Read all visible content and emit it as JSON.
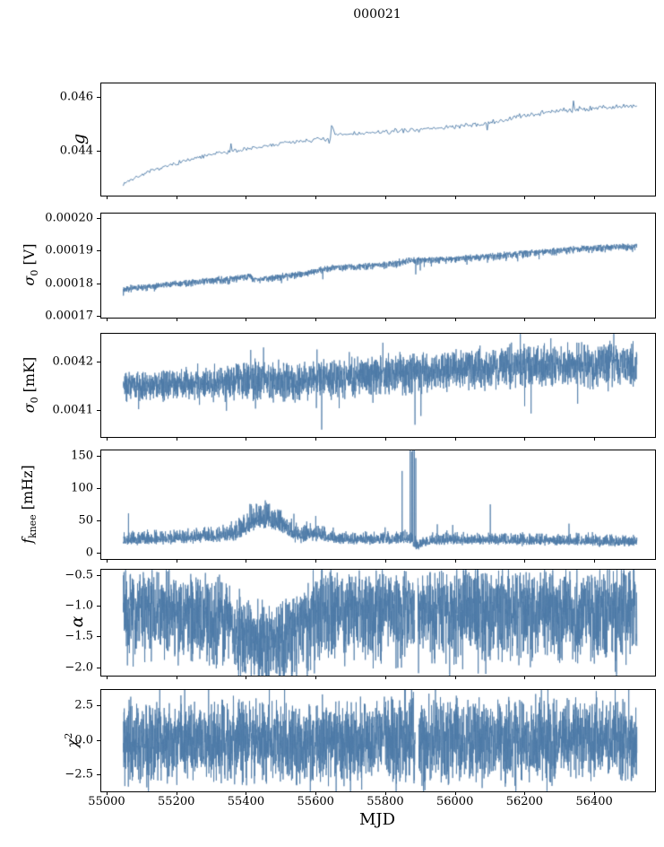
{
  "chart_data": {
    "type": "line",
    "title": "000021",
    "xlabel": "MJD",
    "line_color": "#4d7aa7",
    "axis_color": "#000000",
    "grid": false,
    "legend": "none",
    "xlim": [
      54982,
      56572
    ],
    "data_range": [
      55045,
      56520
    ],
    "xticks": [
      {
        "v": 55000,
        "label": "55000"
      },
      {
        "v": 55200,
        "label": "55200"
      },
      {
        "v": 55400,
        "label": "55400"
      },
      {
        "v": 55600,
        "label": "55600"
      },
      {
        "v": 55800,
        "label": "55800"
      },
      {
        "v": 56000,
        "label": "56000"
      },
      {
        "v": 56200,
        "label": "56200"
      },
      {
        "v": 56400,
        "label": "56400"
      }
    ],
    "panels": [
      {
        "name": "g",
        "ylabel_segments": [
          {
            "t": "g",
            "s": "i"
          }
        ],
        "ylim": [
          0.04235,
          0.04655
        ],
        "yticks": [
          {
            "v": 0.046,
            "label": "0.046"
          },
          {
            "v": 0.044,
            "label": "0.044"
          }
        ],
        "n": 430,
        "seed": 7,
        "line_width": 0.9,
        "asym": [
          1.0,
          1.0
        ],
        "clamp_min": null,
        "envelope": [
          [
            55045,
            0.0428
          ],
          [
            55080,
            0.04302
          ],
          [
            55120,
            0.04324
          ],
          [
            55170,
            0.04345
          ],
          [
            55220,
            0.04364
          ],
          [
            55270,
            0.0438
          ],
          [
            55320,
            0.04394
          ],
          [
            55370,
            0.04404
          ],
          [
            55420,
            0.04412
          ],
          [
            55470,
            0.04424
          ],
          [
            55520,
            0.04434
          ],
          [
            55570,
            0.04442
          ],
          [
            55610,
            0.04447
          ],
          [
            55632,
            0.04448
          ],
          [
            55638,
            0.04418
          ],
          [
            55644,
            0.04506
          ],
          [
            55652,
            0.04462
          ],
          [
            55680,
            0.04464
          ],
          [
            55720,
            0.04467
          ],
          [
            55760,
            0.0447
          ],
          [
            55820,
            0.04475
          ],
          [
            55880,
            0.04482
          ],
          [
            55940,
            0.04487
          ],
          [
            56000,
            0.04494
          ],
          [
            56060,
            0.045
          ],
          [
            56120,
            0.04512
          ],
          [
            56180,
            0.0453
          ],
          [
            56240,
            0.04545
          ],
          [
            56300,
            0.04553
          ],
          [
            56360,
            0.0456
          ],
          [
            56420,
            0.04565
          ],
          [
            56470,
            0.04568
          ],
          [
            56520,
            0.04565
          ]
        ],
        "amp": [
          [
            55045,
            6e-05
          ],
          [
            55600,
            7e-05
          ],
          [
            55900,
            6e-05
          ],
          [
            56100,
            8e-05
          ],
          [
            56250,
            9e-05
          ],
          [
            56520,
            8e-05
          ]
        ],
        "spikes": [
          [
            56338,
            0.0459
          ],
          [
            56090,
            0.0448
          ],
          [
            55355,
            0.0443
          ]
        ],
        "gaps": []
      },
      {
        "name": "sigma0_V",
        "ylabel_segments": [
          {
            "t": "σ",
            "s": "i"
          },
          {
            "t": "0",
            "s": "sub"
          },
          {
            "t": " [V]",
            "s": "r"
          }
        ],
        "ylim": [
          0.0001697,
          0.0002017
        ],
        "yticks": [
          {
            "v": 0.0002,
            "label": "0.00020"
          },
          {
            "v": 0.00019,
            "label": "0.00019"
          },
          {
            "v": 0.00018,
            "label": "0.00018"
          },
          {
            "v": 0.00017,
            "label": "0.00017"
          }
        ],
        "n": 2600,
        "seed": 13,
        "line_width": 0.8,
        "asym": [
          0.7,
          1.3
        ],
        "clamp_min": null,
        "envelope": [
          [
            55045,
            0.0001786
          ],
          [
            55120,
            0.0001794
          ],
          [
            55200,
            0.0001803
          ],
          [
            55280,
            0.0001811
          ],
          [
            55350,
            0.0001817
          ],
          [
            55395,
            0.0001823
          ],
          [
            55412,
            0.0001826
          ],
          [
            55418,
            0.0001814
          ],
          [
            55480,
            0.0001822
          ],
          [
            55540,
            0.000183
          ],
          [
            55585,
            0.0001838
          ],
          [
            55620,
            0.0001847
          ],
          [
            55645,
            0.0001852
          ],
          [
            55690,
            0.0001853
          ],
          [
            55740,
            0.0001857
          ],
          [
            55790,
            0.0001861
          ],
          [
            55835,
            0.0001866
          ],
          [
            55860,
            0.0001873
          ],
          [
            55910,
            0.0001875
          ],
          [
            55960,
            0.0001877
          ],
          [
            56010,
            0.000188
          ],
          [
            56060,
            0.0001884
          ],
          [
            56110,
            0.0001888
          ],
          [
            56160,
            0.0001892
          ],
          [
            56210,
            0.0001897
          ],
          [
            56260,
            0.0001901
          ],
          [
            56310,
            0.0001906
          ],
          [
            56360,
            0.000191
          ],
          [
            56410,
            0.0001913
          ],
          [
            56460,
            0.0001916
          ],
          [
            56520,
            0.0001918
          ]
        ],
        "amp": [
          [
            55045,
            8e-07
          ],
          [
            56520,
            9e-07
          ]
        ],
        "spikes": [
          [
            55618,
            0.0001815
          ],
          [
            55885,
            0.000183
          ],
          [
            55898,
            0.0001842
          ],
          [
            56091,
            0.0001866
          ],
          [
            56178,
            0.000187
          ],
          [
            55345,
            0.00018
          ]
        ],
        "gaps": []
      },
      {
        "name": "sigma0_mK",
        "ylabel_segments": [
          {
            "t": "σ",
            "s": "i"
          },
          {
            "t": "0",
            "s": "sub"
          },
          {
            "t": " [mK]",
            "s": "r"
          }
        ],
        "ylim": [
          0.004047,
          0.004258
        ],
        "yticks": [
          {
            "v": 0.0042,
            "label": "0.0042"
          },
          {
            "v": 0.0041,
            "label": "0.0041"
          }
        ],
        "n": 3200,
        "seed": 21,
        "line_width": 0.8,
        "asym": [
          1.0,
          1.15
        ],
        "clamp_min": null,
        "envelope": [
          [
            55045,
            0.004153
          ],
          [
            55200,
            0.004155
          ],
          [
            55300,
            0.004158
          ],
          [
            55420,
            0.004166
          ],
          [
            55480,
            0.00416
          ],
          [
            55550,
            0.004163
          ],
          [
            55620,
            0.00417
          ],
          [
            55700,
            0.004174
          ],
          [
            55800,
            0.004176
          ],
          [
            55900,
            0.00418
          ],
          [
            56000,
            0.004185
          ],
          [
            56100,
            0.004188
          ],
          [
            56200,
            0.004193
          ],
          [
            56300,
            0.004195
          ],
          [
            56400,
            0.004197
          ],
          [
            56520,
            0.004198
          ]
        ],
        "amp": [
          [
            55045,
            2.2e-05
          ],
          [
            55300,
            2.2e-05
          ],
          [
            55420,
            3e-05
          ],
          [
            55600,
            2.8e-05
          ],
          [
            55800,
            3e-05
          ],
          [
            56000,
            3e-05
          ],
          [
            56200,
            3.3e-05
          ],
          [
            56520,
            3.2e-05
          ]
        ],
        "spikes": [
          [
            55411,
            0.004225
          ],
          [
            55425,
            0.004105
          ],
          [
            55448,
            0.00423
          ],
          [
            55615,
            0.004062
          ],
          [
            55883,
            0.004072
          ],
          [
            55900,
            0.00409
          ],
          [
            56160,
            0.00424
          ],
          [
            56216,
            0.004095
          ],
          [
            56350,
            0.004115
          ]
        ],
        "gaps": []
      },
      {
        "name": "f_knee_mHz",
        "ylabel_segments": [
          {
            "t": "f",
            "s": "i"
          },
          {
            "t": "knee",
            "s": "sub"
          },
          {
            "t": " [mHz]",
            "s": "r"
          }
        ],
        "ylim": [
          -9,
          160
        ],
        "yticks": [
          {
            "v": 150,
            "label": "150"
          },
          {
            "v": 100,
            "label": "100"
          },
          {
            "v": 50,
            "label": "50"
          },
          {
            "v": 0,
            "label": "0"
          }
        ],
        "n": 3200,
        "seed": 29,
        "line_width": 0.8,
        "asym": [
          1.35,
          0.65
        ],
        "clamp_min": 2,
        "envelope": [
          [
            55045,
            20
          ],
          [
            55150,
            21
          ],
          [
            55250,
            24
          ],
          [
            55330,
            26
          ],
          [
            55380,
            32
          ],
          [
            55410,
            45
          ],
          [
            55435,
            54
          ],
          [
            55465,
            52
          ],
          [
            55500,
            42
          ],
          [
            55530,
            32
          ],
          [
            55560,
            26
          ],
          [
            55585,
            30
          ],
          [
            55610,
            26
          ],
          [
            55650,
            22
          ],
          [
            55700,
            20
          ],
          [
            55760,
            20
          ],
          [
            55820,
            21
          ],
          [
            55870,
            22
          ],
          [
            55888,
            10
          ],
          [
            55902,
            14
          ],
          [
            55925,
            18
          ],
          [
            56000,
            20
          ],
          [
            56080,
            20
          ],
          [
            56150,
            19
          ],
          [
            56250,
            19
          ],
          [
            56350,
            18
          ],
          [
            56450,
            17
          ],
          [
            56520,
            17
          ]
        ],
        "amp": [
          [
            55045,
            8
          ],
          [
            55330,
            9
          ],
          [
            55410,
            16
          ],
          [
            55470,
            16
          ],
          [
            55530,
            12
          ],
          [
            55600,
            11
          ],
          [
            55660,
            8
          ],
          [
            55750,
            7
          ],
          [
            55880,
            8
          ],
          [
            55910,
            5
          ],
          [
            55950,
            7
          ],
          [
            56520,
            7
          ]
        ],
        "spikes": [
          [
            55060,
            62
          ],
          [
            55846,
            128
          ],
          [
            55869,
            165
          ],
          [
            55873,
            158
          ],
          [
            55877,
            167
          ],
          [
            55881,
            160
          ],
          [
            55885,
            148
          ],
          [
            55598,
            58
          ],
          [
            55648,
            40
          ],
          [
            55947,
            45
          ],
          [
            55991,
            44
          ],
          [
            56099,
            76
          ],
          [
            56325,
            46
          ]
        ],
        "gaps": []
      },
      {
        "name": "alpha",
        "ylabel_segments": [
          {
            "t": "α",
            "s": "i"
          }
        ],
        "ylim": [
          -2.12,
          -0.4
        ],
        "yticks": [
          {
            "v": -0.5,
            "label": "−0.5"
          },
          {
            "v": -1.0,
            "label": "−1.0"
          },
          {
            "v": -1.5,
            "label": "−1.5"
          },
          {
            "v": -2.0,
            "label": "−2.0"
          }
        ],
        "n": 3400,
        "seed": 37,
        "line_width": 0.8,
        "asym": [
          0.78,
          1.08
        ],
        "clamp_min": null,
        "envelope": [
          [
            55045,
            -1.03
          ],
          [
            55150,
            -1.04
          ],
          [
            55250,
            -1.06
          ],
          [
            55305,
            -1.12
          ],
          [
            55355,
            -1.22
          ],
          [
            55395,
            -1.42
          ],
          [
            55425,
            -1.52
          ],
          [
            55465,
            -1.55
          ],
          [
            55505,
            -1.5
          ],
          [
            55540,
            -1.38
          ],
          [
            55565,
            -1.22
          ],
          [
            55590,
            -1.1
          ],
          [
            55620,
            -1.04
          ],
          [
            55700,
            -1.02
          ],
          [
            55800,
            -1.04
          ],
          [
            55900,
            -1.03
          ],
          [
            56000,
            -1.04
          ],
          [
            56100,
            -1.03
          ],
          [
            56200,
            -1.05
          ],
          [
            56300,
            -1.03
          ],
          [
            56400,
            -1.04
          ],
          [
            56520,
            -1.03
          ]
        ],
        "amp": [
          [
            55045,
            0.6
          ],
          [
            55300,
            0.6
          ],
          [
            55420,
            0.58
          ],
          [
            55600,
            0.62
          ],
          [
            56520,
            0.6
          ]
        ],
        "spikes": [
          [
            55240,
            -1.88
          ],
          [
            55468,
            -2.02
          ],
          [
            55490,
            -1.98
          ],
          [
            55878,
            -1.6
          ],
          [
            55893,
            -2.08
          ],
          [
            56350,
            -1.92
          ]
        ],
        "gaps": [
          [
            55882,
            55891
          ]
        ]
      },
      {
        "name": "chi2",
        "ylabel_segments": [
          {
            "t": "χ",
            "s": "i"
          },
          {
            "t": "2",
            "s": "sup"
          }
        ],
        "ylim": [
          -3.7,
          3.7
        ],
        "yticks": [
          {
            "v": 2.5,
            "label": "2.5"
          },
          {
            "v": 0.0,
            "label": "0.0"
          },
          {
            "v": -2.5,
            "label": "−2.5"
          }
        ],
        "n": 3400,
        "seed": 45,
        "line_width": 0.8,
        "asym": [
          1.0,
          1.0
        ],
        "clamp_min": null,
        "envelope": [
          [
            55045,
            0.0
          ],
          [
            56520,
            0.0
          ]
        ],
        "amp": [
          [
            55045,
            2.3
          ],
          [
            56520,
            2.3
          ]
        ],
        "spikes": [
          [
            55250,
            2.85
          ],
          [
            55455,
            -2.95
          ],
          [
            55700,
            2.8
          ],
          [
            55878,
            3.55
          ],
          [
            55903,
            -3.3
          ],
          [
            55910,
            -3.0
          ],
          [
            56130,
            -2.9
          ],
          [
            56388,
            -2.95
          ]
        ],
        "gaps": [
          [
            55883,
            55893
          ]
        ]
      }
    ]
  }
}
